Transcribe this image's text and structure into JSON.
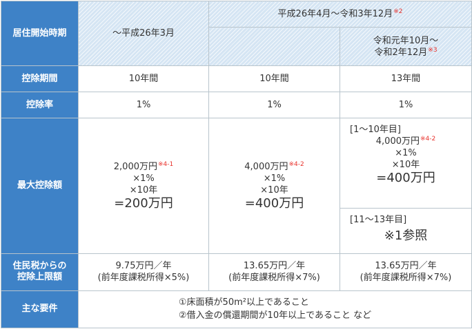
{
  "row_labels": {
    "start": "居住開始時期",
    "period": "控除期間",
    "rate": "控除率",
    "max": "最大控除額",
    "resident": [
      "住民税からの",
      "控除上限額"
    ],
    "requirements": "主な要件"
  },
  "col1": {
    "header": "～平成26年3月",
    "period": "10年間",
    "rate": "1%",
    "max_lines": [
      "2,000万円",
      "×1%",
      "×10年",
      "=200万円"
    ],
    "max_note": "※4-1",
    "resident": [
      "9.75万円／年",
      "(前年度課税所得×5%)"
    ]
  },
  "col23": {
    "header": "平成26年4月～令和3年12月",
    "header_note": "※2"
  },
  "col2": {
    "period": "10年間",
    "rate": "1%",
    "max_lines": [
      "4,000万円",
      "×1%",
      "×10年",
      "=400万円"
    ],
    "max_note": "※4-2",
    "resident": [
      "13.65万円／年",
      "(前年度課税所得×7%)"
    ]
  },
  "col3": {
    "header_lines": [
      "令和元年10月～",
      "令和2年12月"
    ],
    "header_note": "※3",
    "period": "13年間",
    "rate": "1%",
    "max_upper_label": "[1～10年目]",
    "max_upper_lines": [
      "4,000万円",
      "×1%",
      "×10年",
      "=400万円"
    ],
    "max_upper_note": "※4-2",
    "max_lower_label": "[11～13年目]",
    "max_lower_text": "※1参照",
    "resident": [
      "13.65万円／年",
      "(前年度課税所得×7%)"
    ]
  },
  "requirements": [
    "①床面積が50m²以上であること",
    "②借入金の償還期間が10年以上であること など"
  ]
}
